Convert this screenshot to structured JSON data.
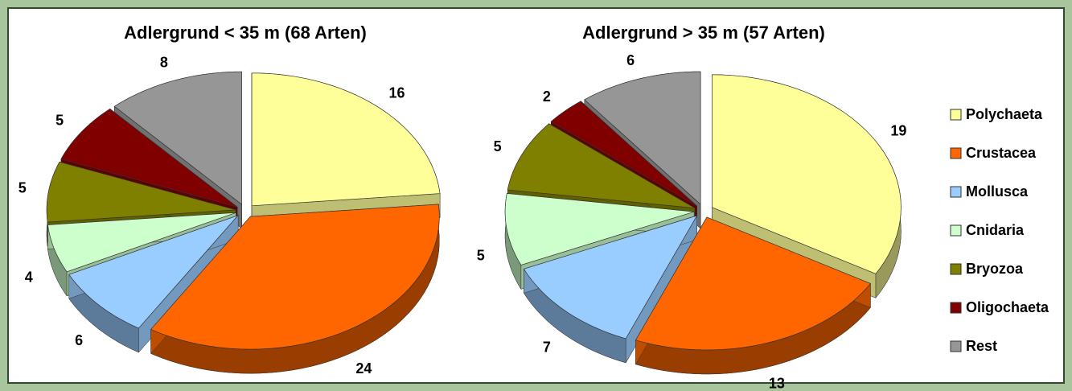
{
  "chart_data": {
    "type": "pie",
    "categories": [
      "Polychaeta",
      "Crustacea",
      "Mollusca",
      "Cnidaria",
      "Bryozoa",
      "Oligochaeta",
      "Rest"
    ],
    "colors": [
      "#ffff99",
      "#ff6600",
      "#99ccff",
      "#ccffcc",
      "#808000",
      "#800000",
      "#969696"
    ],
    "series": [
      {
        "name": "Adlergrund < 35 m (68 Arten)",
        "values": [
          16,
          24,
          6,
          4,
          5,
          5,
          8
        ]
      },
      {
        "name": "Adlergrund > 35 m (57 Arten)",
        "values": [
          19,
          13,
          7,
          5,
          5,
          2,
          6
        ]
      }
    ],
    "legend": "right"
  }
}
